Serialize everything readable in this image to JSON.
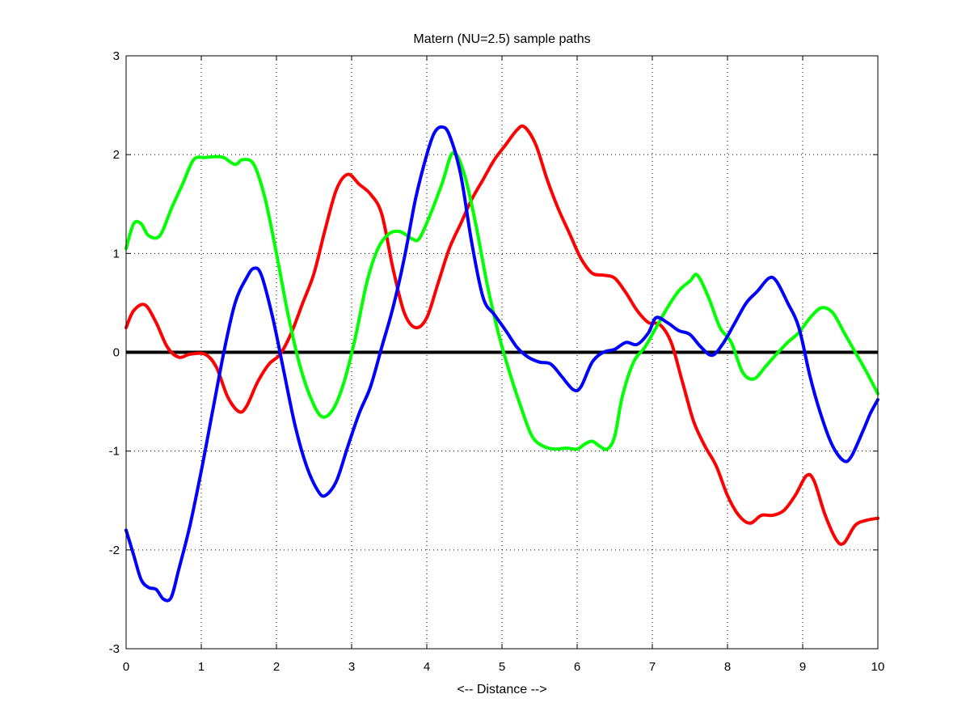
{
  "chart_data": {
    "type": "line",
    "title": "Matern (NU=2.5) sample paths",
    "xlabel": "<-- Distance -->",
    "ylabel": "",
    "xlim": [
      0,
      10
    ],
    "ylim": [
      -3,
      3
    ],
    "xticks": [
      "0",
      "1",
      "2",
      "3",
      "4",
      "5",
      "6",
      "7",
      "8",
      "9",
      "10"
    ],
    "yticks": [
      "-3",
      "-2",
      "-1",
      "0",
      "1",
      "2",
      "3"
    ],
    "grid": true,
    "legend": "none",
    "reference_line": {
      "y": 0,
      "color": "#000000"
    },
    "series": [
      {
        "color": "#ff0000",
        "points": [
          [
            0,
            0.25
          ],
          [
            0.1,
            0.42
          ],
          [
            0.25,
            0.48
          ],
          [
            0.4,
            0.3
          ],
          [
            0.55,
            0.05
          ],
          [
            0.7,
            -0.05
          ],
          [
            0.85,
            -0.02
          ],
          [
            1.05,
            -0.02
          ],
          [
            1.2,
            -0.15
          ],
          [
            1.35,
            -0.45
          ],
          [
            1.5,
            -0.6
          ],
          [
            1.6,
            -0.55
          ],
          [
            1.75,
            -0.3
          ],
          [
            1.9,
            -0.12
          ],
          [
            2.05,
            -0.02
          ],
          [
            2.2,
            0.2
          ],
          [
            2.35,
            0.5
          ],
          [
            2.5,
            0.8
          ],
          [
            2.65,
            1.25
          ],
          [
            2.8,
            1.65
          ],
          [
            2.95,
            1.8
          ],
          [
            3.1,
            1.7
          ],
          [
            3.25,
            1.6
          ],
          [
            3.4,
            1.4
          ],
          [
            3.55,
            0.85
          ],
          [
            3.7,
            0.4
          ],
          [
            3.85,
            0.25
          ],
          [
            4.0,
            0.35
          ],
          [
            4.15,
            0.7
          ],
          [
            4.3,
            1.05
          ],
          [
            4.45,
            1.3
          ],
          [
            4.6,
            1.55
          ],
          [
            4.75,
            1.75
          ],
          [
            4.9,
            1.95
          ],
          [
            5.05,
            2.1
          ],
          [
            5.2,
            2.25
          ],
          [
            5.3,
            2.28
          ],
          [
            5.45,
            2.1
          ],
          [
            5.6,
            1.75
          ],
          [
            5.75,
            1.45
          ],
          [
            5.9,
            1.2
          ],
          [
            6.05,
            0.95
          ],
          [
            6.2,
            0.8
          ],
          [
            6.35,
            0.78
          ],
          [
            6.5,
            0.75
          ],
          [
            6.65,
            0.6
          ],
          [
            6.8,
            0.42
          ],
          [
            6.95,
            0.3
          ],
          [
            7.1,
            0.28
          ],
          [
            7.25,
            0.1
          ],
          [
            7.4,
            -0.3
          ],
          [
            7.55,
            -0.7
          ],
          [
            7.7,
            -0.95
          ],
          [
            7.85,
            -1.15
          ],
          [
            8.0,
            -1.45
          ],
          [
            8.15,
            -1.65
          ],
          [
            8.3,
            -1.73
          ],
          [
            8.45,
            -1.65
          ],
          [
            8.6,
            -1.65
          ],
          [
            8.75,
            -1.6
          ],
          [
            8.9,
            -1.45
          ],
          [
            9.05,
            -1.25
          ],
          [
            9.15,
            -1.3
          ],
          [
            9.3,
            -1.65
          ],
          [
            9.45,
            -1.9
          ],
          [
            9.55,
            -1.93
          ],
          [
            9.7,
            -1.75
          ],
          [
            9.85,
            -1.7
          ],
          [
            10,
            -1.68
          ]
        ]
      },
      {
        "color": "#00ff00",
        "points": [
          [
            0,
            1.05
          ],
          [
            0.1,
            1.3
          ],
          [
            0.2,
            1.3
          ],
          [
            0.3,
            1.18
          ],
          [
            0.45,
            1.18
          ],
          [
            0.6,
            1.45
          ],
          [
            0.75,
            1.7
          ],
          [
            0.9,
            1.95
          ],
          [
            1.05,
            1.97
          ],
          [
            1.2,
            1.98
          ],
          [
            1.3,
            1.97
          ],
          [
            1.45,
            1.9
          ],
          [
            1.55,
            1.95
          ],
          [
            1.7,
            1.9
          ],
          [
            1.85,
            1.55
          ],
          [
            2.0,
            1.0
          ],
          [
            2.15,
            0.4
          ],
          [
            2.3,
            -0.1
          ],
          [
            2.45,
            -0.45
          ],
          [
            2.6,
            -0.65
          ],
          [
            2.75,
            -0.58
          ],
          [
            2.9,
            -0.3
          ],
          [
            3.05,
            0.15
          ],
          [
            3.2,
            0.7
          ],
          [
            3.35,
            1.05
          ],
          [
            3.5,
            1.2
          ],
          [
            3.65,
            1.22
          ],
          [
            3.8,
            1.15
          ],
          [
            3.9,
            1.15
          ],
          [
            4.05,
            1.4
          ],
          [
            4.2,
            1.7
          ],
          [
            4.35,
            2.02
          ],
          [
            4.5,
            1.8
          ],
          [
            4.65,
            1.3
          ],
          [
            4.8,
            0.7
          ],
          [
            4.95,
            0.2
          ],
          [
            5.1,
            -0.2
          ],
          [
            5.25,
            -0.55
          ],
          [
            5.4,
            -0.85
          ],
          [
            5.55,
            -0.95
          ],
          [
            5.7,
            -0.98
          ],
          [
            5.85,
            -0.97
          ],
          [
            6.0,
            -0.98
          ],
          [
            6.1,
            -0.93
          ],
          [
            6.2,
            -0.9
          ],
          [
            6.3,
            -0.95
          ],
          [
            6.4,
            -0.98
          ],
          [
            6.5,
            -0.85
          ],
          [
            6.6,
            -0.45
          ],
          [
            6.75,
            -0.1
          ],
          [
            6.9,
            0.05
          ],
          [
            7.05,
            0.25
          ],
          [
            7.2,
            0.45
          ],
          [
            7.35,
            0.62
          ],
          [
            7.5,
            0.72
          ],
          [
            7.6,
            0.78
          ],
          [
            7.75,
            0.55
          ],
          [
            7.9,
            0.25
          ],
          [
            8.05,
            0.1
          ],
          [
            8.2,
            -0.2
          ],
          [
            8.35,
            -0.27
          ],
          [
            8.5,
            -0.15
          ],
          [
            8.65,
            -0.02
          ],
          [
            8.8,
            0.1
          ],
          [
            8.95,
            0.2
          ],
          [
            9.1,
            0.35
          ],
          [
            9.25,
            0.45
          ],
          [
            9.4,
            0.4
          ],
          [
            9.55,
            0.2
          ],
          [
            9.7,
            0.0
          ],
          [
            9.85,
            -0.2
          ],
          [
            10,
            -0.42
          ]
        ]
      },
      {
        "color": "#0000ff",
        "points": [
          [
            0,
            -1.8
          ],
          [
            0.1,
            -2.05
          ],
          [
            0.2,
            -2.3
          ],
          [
            0.3,
            -2.38
          ],
          [
            0.4,
            -2.4
          ],
          [
            0.5,
            -2.5
          ],
          [
            0.6,
            -2.48
          ],
          [
            0.7,
            -2.2
          ],
          [
            0.85,
            -1.75
          ],
          [
            1.0,
            -1.2
          ],
          [
            1.15,
            -0.6
          ],
          [
            1.3,
            0.0
          ],
          [
            1.45,
            0.5
          ],
          [
            1.6,
            0.75
          ],
          [
            1.7,
            0.85
          ],
          [
            1.8,
            0.78
          ],
          [
            1.95,
            0.35
          ],
          [
            2.1,
            -0.2
          ],
          [
            2.25,
            -0.75
          ],
          [
            2.4,
            -1.15
          ],
          [
            2.55,
            -1.4
          ],
          [
            2.65,
            -1.45
          ],
          [
            2.8,
            -1.3
          ],
          [
            2.95,
            -0.95
          ],
          [
            3.1,
            -0.62
          ],
          [
            3.25,
            -0.35
          ],
          [
            3.4,
            0.05
          ],
          [
            3.55,
            0.45
          ],
          [
            3.7,
            0.95
          ],
          [
            3.85,
            1.55
          ],
          [
            4.0,
            2.0
          ],
          [
            4.1,
            2.22
          ],
          [
            4.2,
            2.28
          ],
          [
            4.3,
            2.2
          ],
          [
            4.45,
            1.8
          ],
          [
            4.6,
            1.1
          ],
          [
            4.75,
            0.55
          ],
          [
            4.9,
            0.38
          ],
          [
            5.05,
            0.22
          ],
          [
            5.2,
            0.05
          ],
          [
            5.35,
            -0.05
          ],
          [
            5.5,
            -0.1
          ],
          [
            5.65,
            -0.12
          ],
          [
            5.8,
            -0.25
          ],
          [
            5.95,
            -0.38
          ],
          [
            6.05,
            -0.35
          ],
          [
            6.2,
            -0.1
          ],
          [
            6.35,
            0.0
          ],
          [
            6.5,
            0.03
          ],
          [
            6.65,
            0.1
          ],
          [
            6.8,
            0.08
          ],
          [
            6.95,
            0.2
          ],
          [
            7.05,
            0.35
          ],
          [
            7.2,
            0.3
          ],
          [
            7.35,
            0.22
          ],
          [
            7.5,
            0.18
          ],
          [
            7.65,
            0.05
          ],
          [
            7.8,
            -0.03
          ],
          [
            7.95,
            0.1
          ],
          [
            8.1,
            0.3
          ],
          [
            8.25,
            0.5
          ],
          [
            8.4,
            0.62
          ],
          [
            8.55,
            0.75
          ],
          [
            8.65,
            0.72
          ],
          [
            8.8,
            0.5
          ],
          [
            8.95,
            0.25
          ],
          [
            9.1,
            -0.25
          ],
          [
            9.25,
            -0.65
          ],
          [
            9.4,
            -0.95
          ],
          [
            9.55,
            -1.1
          ],
          [
            9.65,
            -1.05
          ],
          [
            9.8,
            -0.8
          ],
          [
            9.9,
            -0.62
          ],
          [
            10,
            -0.48
          ]
        ]
      }
    ]
  }
}
